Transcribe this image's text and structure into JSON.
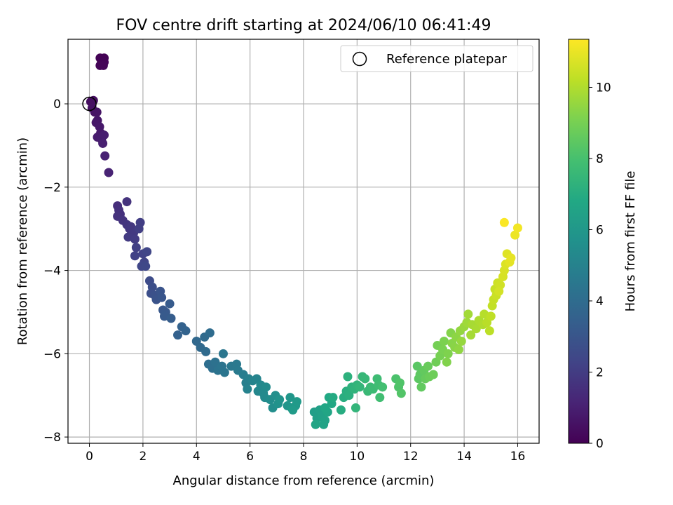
{
  "chart_data": {
    "type": "scatter",
    "title": "FOV centre drift starting at 2024/06/10 06:41:49",
    "xlabel": "Angular distance from reference (arcmin)",
    "ylabel": "Rotation from reference (arcmin)",
    "xlim": [
      -0.8,
      16.8
    ],
    "ylim": [
      -8.15,
      1.55
    ],
    "xticks": [
      0,
      2,
      4,
      6,
      8,
      10,
      12,
      14,
      16
    ],
    "yticks": [
      -8,
      -6,
      -4,
      -2,
      0
    ],
    "grid": true,
    "legend": {
      "position": "top-right",
      "entries": [
        "Reference platepar"
      ]
    },
    "reference_point": {
      "x": 0,
      "y": 0
    },
    "colorbar": {
      "label": "Hours from first FF file",
      "range": [
        0,
        11.35
      ],
      "ticks": [
        0,
        2,
        4,
        6,
        8,
        10
      ],
      "colormap": "viridis"
    },
    "points": [
      [
        0.4,
        1.1,
        0.05
      ],
      [
        0.55,
        1.1,
        0.05
      ],
      [
        0.45,
        1.0,
        0.08
      ],
      [
        0.55,
        1.0,
        0.1
      ],
      [
        0.4,
        0.92,
        0.12
      ],
      [
        0.52,
        0.92,
        0.15
      ],
      [
        0.05,
        0.05,
        0.4
      ],
      [
        0.15,
        0.08,
        0.45
      ],
      [
        0.1,
        -0.1,
        0.5
      ],
      [
        0.2,
        -0.2,
        0.55
      ],
      [
        0.28,
        -0.2,
        0.6
      ],
      [
        0.3,
        -0.4,
        0.65
      ],
      [
        0.25,
        -0.45,
        0.7
      ],
      [
        0.38,
        -0.55,
        0.75
      ],
      [
        0.42,
        -0.7,
        0.8
      ],
      [
        0.3,
        -0.8,
        0.85
      ],
      [
        0.45,
        -0.85,
        0.9
      ],
      [
        0.55,
        -0.75,
        0.95
      ],
      [
        0.5,
        -0.95,
        1.0
      ],
      [
        0.58,
        -1.25,
        1.05
      ],
      [
        0.72,
        -1.65,
        1.1
      ],
      [
        1.05,
        -2.45,
        1.5
      ],
      [
        1.1,
        -2.55,
        1.55
      ],
      [
        1.15,
        -2.65,
        1.6
      ],
      [
        1.05,
        -2.7,
        1.62
      ],
      [
        1.4,
        -2.35,
        1.65
      ],
      [
        1.25,
        -2.8,
        1.7
      ],
      [
        1.4,
        -2.9,
        1.75
      ],
      [
        1.5,
        -3.0,
        1.8
      ],
      [
        1.55,
        -2.95,
        1.85
      ],
      [
        1.65,
        -3.1,
        1.9
      ],
      [
        1.45,
        -3.2,
        1.95
      ],
      [
        1.7,
        -3.25,
        2.0
      ],
      [
        1.9,
        -2.85,
        2.05
      ],
      [
        1.85,
        -3.0,
        2.1
      ],
      [
        1.75,
        -3.45,
        2.15
      ],
      [
        1.7,
        -3.65,
        2.2
      ],
      [
        2.0,
        -3.6,
        2.25
      ],
      [
        2.05,
        -3.8,
        2.3
      ],
      [
        2.15,
        -3.55,
        2.35
      ],
      [
        1.95,
        -3.9,
        2.4
      ],
      [
        2.1,
        -3.9,
        2.45
      ],
      [
        2.25,
        -4.25,
        2.6
      ],
      [
        2.35,
        -4.4,
        2.7
      ],
      [
        2.3,
        -4.55,
        2.75
      ],
      [
        2.45,
        -4.6,
        2.8
      ],
      [
        2.5,
        -4.7,
        2.9
      ],
      [
        2.65,
        -4.5,
        2.95
      ],
      [
        2.7,
        -4.65,
        3.0
      ],
      [
        2.75,
        -4.95,
        3.1
      ],
      [
        2.85,
        -5.0,
        3.15
      ],
      [
        2.8,
        -5.1,
        3.2
      ],
      [
        3.0,
        -4.8,
        3.25
      ],
      [
        3.05,
        -5.15,
        3.3
      ],
      [
        3.3,
        -5.55,
        3.5
      ],
      [
        3.45,
        -5.35,
        3.55
      ],
      [
        3.6,
        -5.45,
        3.6
      ],
      [
        4.0,
        -5.7,
        3.8
      ],
      [
        4.15,
        -5.85,
        3.85
      ],
      [
        4.3,
        -5.6,
        3.9
      ],
      [
        4.35,
        -5.95,
        3.95
      ],
      [
        4.5,
        -5.5,
        4.0
      ],
      [
        4.45,
        -6.25,
        4.1
      ],
      [
        4.6,
        -6.35,
        4.15
      ],
      [
        4.7,
        -6.2,
        4.2
      ],
      [
        4.8,
        -6.4,
        4.3
      ],
      [
        4.95,
        -6.3,
        4.35
      ],
      [
        5.05,
        -6.45,
        4.4
      ],
      [
        5.0,
        -6.0,
        4.45
      ],
      [
        5.3,
        -6.3,
        4.55
      ],
      [
        5.5,
        -6.25,
        4.6
      ],
      [
        5.55,
        -6.4,
        4.65
      ],
      [
        5.75,
        -6.5,
        4.75
      ],
      [
        5.85,
        -6.7,
        4.85
      ],
      [
        5.95,
        -6.6,
        4.9
      ],
      [
        5.9,
        -6.85,
        5.0
      ],
      [
        6.1,
        -6.65,
        5.05
      ],
      [
        6.25,
        -6.6,
        5.1
      ],
      [
        6.3,
        -6.9,
        5.2
      ],
      [
        6.4,
        -6.75,
        5.25
      ],
      [
        6.5,
        -6.95,
        5.3
      ],
      [
        6.55,
        -7.05,
        5.35
      ],
      [
        6.6,
        -6.8,
        5.4
      ],
      [
        6.75,
        -7.1,
        5.5
      ],
      [
        6.85,
        -7.3,
        5.55
      ],
      [
        6.95,
        -7.0,
        5.6
      ],
      [
        7.05,
        -7.2,
        5.7
      ],
      [
        7.1,
        -7.1,
        5.75
      ],
      [
        7.4,
        -7.25,
        5.85
      ],
      [
        7.5,
        -7.05,
        5.9
      ],
      [
        7.55,
        -7.3,
        6.0
      ],
      [
        7.7,
        -7.25,
        6.05
      ],
      [
        7.75,
        -7.15,
        6.1
      ],
      [
        7.6,
        -7.35,
        6.15
      ],
      [
        8.4,
        -7.4,
        6.3
      ],
      [
        8.5,
        -7.55,
        6.35
      ],
      [
        8.6,
        -7.35,
        6.4
      ],
      [
        8.7,
        -7.5,
        6.45
      ],
      [
        8.8,
        -7.6,
        6.5
      ],
      [
        8.75,
        -7.7,
        6.55
      ],
      [
        8.45,
        -7.7,
        6.6
      ],
      [
        8.9,
        -7.4,
        6.65
      ],
      [
        8.8,
        -7.3,
        6.7
      ],
      [
        9.05,
        -7.2,
        6.75
      ],
      [
        8.95,
        -7.05,
        6.8
      ],
      [
        9.1,
        -7.05,
        6.9
      ],
      [
        9.4,
        -7.35,
        7.0
      ],
      [
        9.5,
        -7.05,
        7.05
      ],
      [
        9.6,
        -6.9,
        7.1
      ],
      [
        9.7,
        -7.0,
        7.15
      ],
      [
        9.65,
        -6.55,
        7.2
      ],
      [
        9.8,
        -6.8,
        7.25
      ],
      [
        9.9,
        -6.85,
        7.3
      ],
      [
        10.0,
        -6.75,
        7.35
      ],
      [
        9.95,
        -7.3,
        7.4
      ],
      [
        10.1,
        -6.8,
        7.45
      ],
      [
        10.2,
        -6.55,
        7.5
      ],
      [
        10.3,
        -6.6,
        7.55
      ],
      [
        10.4,
        -6.9,
        7.6
      ],
      [
        10.5,
        -6.8,
        7.65
      ],
      [
        10.6,
        -6.85,
        7.7
      ],
      [
        10.75,
        -6.6,
        7.75
      ],
      [
        10.8,
        -6.75,
        7.8
      ],
      [
        10.85,
        -7.05,
        7.85
      ],
      [
        10.95,
        -6.8,
        7.9
      ],
      [
        11.45,
        -6.6,
        8.1
      ],
      [
        11.55,
        -6.8,
        8.15
      ],
      [
        11.6,
        -6.7,
        8.2
      ],
      [
        11.65,
        -6.95,
        8.25
      ],
      [
        12.25,
        -6.3,
        8.4
      ],
      [
        12.3,
        -6.6,
        8.45
      ],
      [
        12.35,
        -6.5,
        8.5
      ],
      [
        12.4,
        -6.8,
        8.55
      ],
      [
        12.5,
        -6.4,
        8.6
      ],
      [
        12.55,
        -6.6,
        8.65
      ],
      [
        12.65,
        -6.3,
        8.7
      ],
      [
        12.7,
        -6.55,
        8.75
      ],
      [
        12.85,
        -6.5,
        8.8
      ],
      [
        12.95,
        -6.2,
        8.85
      ],
      [
        13.0,
        -5.8,
        8.95
      ],
      [
        13.1,
        -6.05,
        9.0
      ],
      [
        13.2,
        -5.9,
        9.05
      ],
      [
        13.25,
        -5.7,
        9.1
      ],
      [
        13.4,
        -6.0,
        9.15
      ],
      [
        13.35,
        -6.2,
        9.2
      ],
      [
        13.5,
        -5.5,
        9.25
      ],
      [
        13.55,
        -5.75,
        9.3
      ],
      [
        13.65,
        -5.85,
        9.35
      ],
      [
        13.7,
        -5.6,
        9.4
      ],
      [
        13.8,
        -5.9,
        9.45
      ],
      [
        13.85,
        -5.45,
        9.5
      ],
      [
        13.9,
        -5.7,
        9.55
      ],
      [
        14.0,
        -5.35,
        9.6
      ],
      [
        14.1,
        -5.25,
        9.7
      ],
      [
        14.15,
        -5.05,
        9.75
      ],
      [
        14.25,
        -5.55,
        9.8
      ],
      [
        14.3,
        -5.3,
        9.85
      ],
      [
        14.45,
        -5.4,
        9.9
      ],
      [
        14.55,
        -5.2,
        9.95
      ],
      [
        14.7,
        -5.3,
        10.0
      ],
      [
        14.75,
        -5.05,
        10.1
      ],
      [
        14.85,
        -5.25,
        10.15
      ],
      [
        14.95,
        -5.45,
        10.2
      ],
      [
        15.0,
        -5.1,
        10.25
      ],
      [
        15.05,
        -4.85,
        10.3
      ],
      [
        15.1,
        -4.7,
        10.35
      ],
      [
        15.15,
        -4.45,
        10.4
      ],
      [
        15.2,
        -4.6,
        10.45
      ],
      [
        15.25,
        -4.3,
        10.5
      ],
      [
        15.35,
        -4.35,
        10.55
      ],
      [
        15.3,
        -4.5,
        10.6
      ],
      [
        15.45,
        -4.15,
        10.65
      ],
      [
        15.5,
        -4.0,
        10.7
      ],
      [
        15.55,
        -3.85,
        10.75
      ],
      [
        15.6,
        -3.6,
        10.8
      ],
      [
        15.7,
        -3.8,
        10.9
      ],
      [
        15.75,
        -3.7,
        10.95
      ],
      [
        15.9,
        -3.15,
        11.05
      ],
      [
        16.0,
        -2.98,
        11.15
      ],
      [
        15.5,
        -2.85,
        11.3
      ]
    ]
  }
}
